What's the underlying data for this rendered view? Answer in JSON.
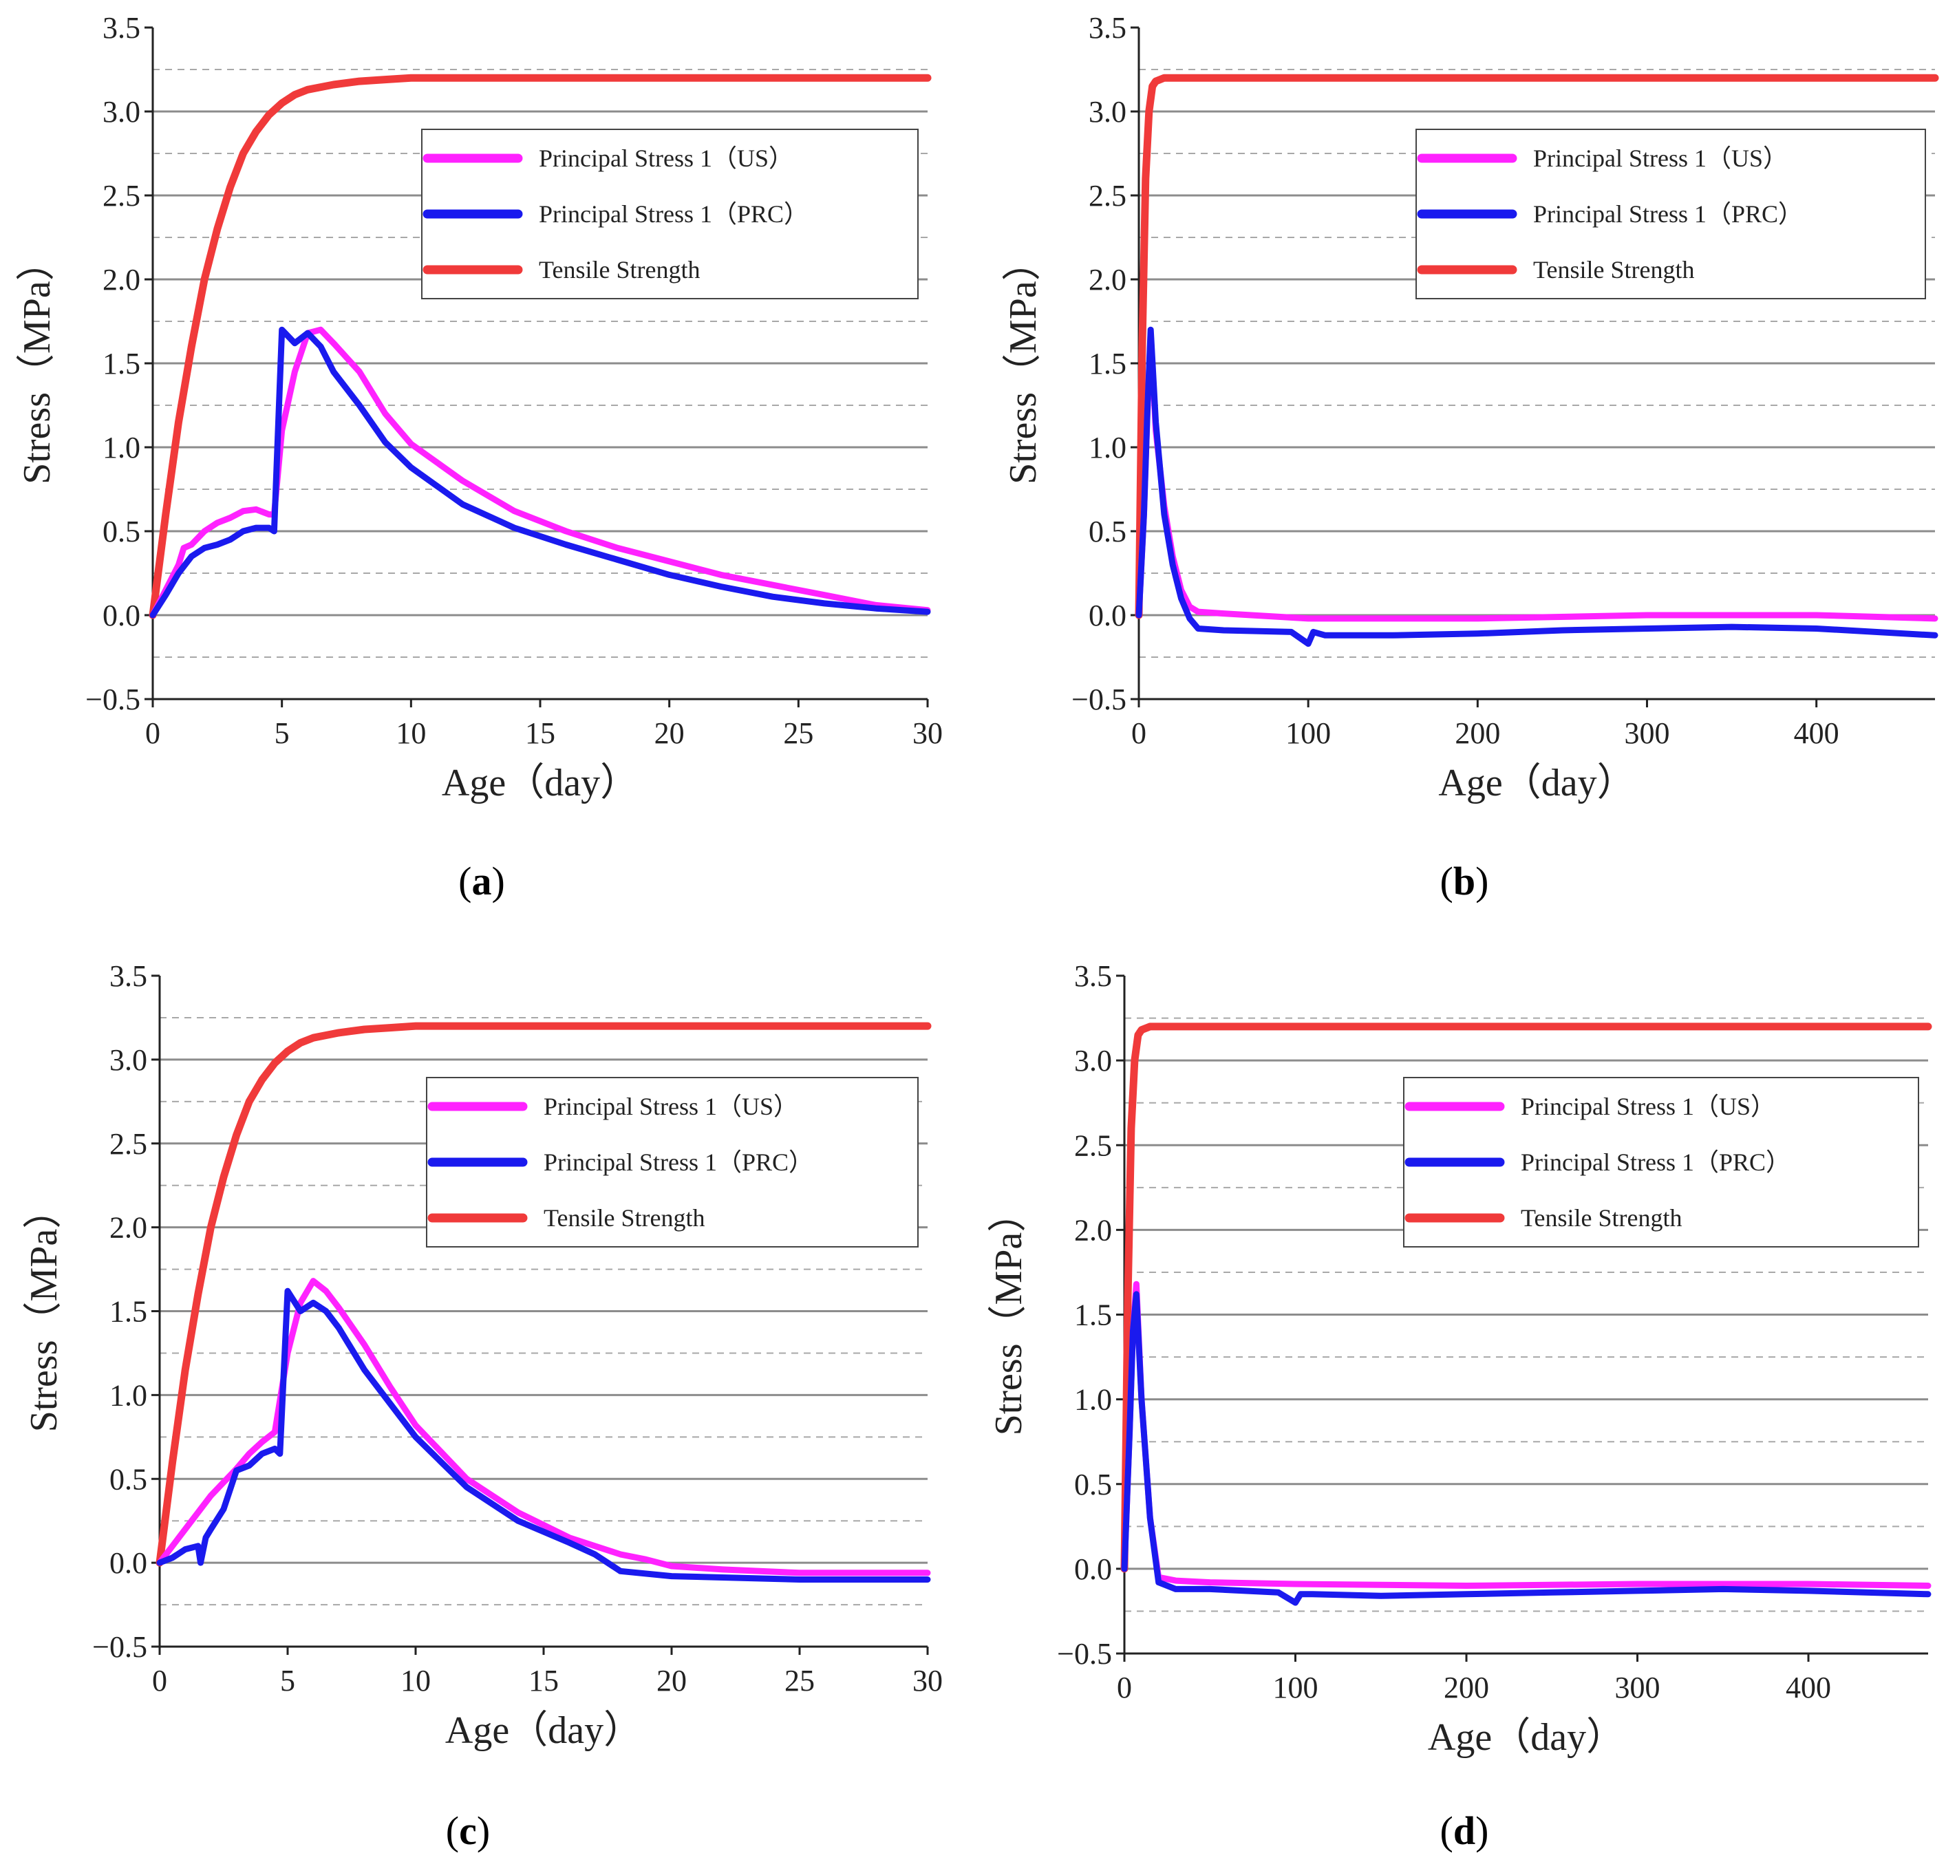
{
  "chart_data": [
    {
      "panel": "a",
      "label": "(a)",
      "type": "line",
      "xlabel": "Age（day）",
      "ylabel": "Stress（MPa）",
      "xlim": [
        0,
        30
      ],
      "ylim": [
        -0.5,
        3.5
      ],
      "xticks": [
        0,
        5,
        10,
        15,
        20,
        25,
        30
      ],
      "yticks": [
        -0.5,
        0.0,
        0.5,
        1.0,
        1.5,
        2.0,
        2.5,
        3.0,
        3.5
      ],
      "ytick_labels": [
        "−0.5",
        "0.0",
        "0.5",
        "1.0",
        "1.5",
        "2.0",
        "2.5",
        "3.0",
        "3.5"
      ],
      "legend": {
        "position": "top-right"
      },
      "series": [
        {
          "name": "Principal Stress 1（US）",
          "color": "#ff22ff",
          "x": [
            0,
            0.5,
            1,
            1.2,
            1.5,
            2,
            2.5,
            3,
            3.5,
            4,
            4.5,
            4.7,
            5,
            5.5,
            6,
            6.5,
            7,
            8,
            9,
            10,
            12,
            14,
            16,
            18,
            20,
            22,
            24,
            26,
            28,
            30
          ],
          "y": [
            0,
            0.15,
            0.3,
            0.4,
            0.42,
            0.5,
            0.55,
            0.58,
            0.62,
            0.63,
            0.6,
            0.6,
            1.1,
            1.45,
            1.68,
            1.7,
            1.62,
            1.45,
            1.2,
            1.02,
            0.8,
            0.62,
            0.5,
            0.4,
            0.32,
            0.24,
            0.18,
            0.12,
            0.06,
            0.03
          ]
        },
        {
          "name": "Principal Stress 1（PRC）",
          "color": "#1a1aee",
          "x": [
            0,
            0.5,
            1,
            1.5,
            2,
            2.5,
            3,
            3.5,
            4,
            4.5,
            4.7,
            5,
            5.5,
            6,
            6.5,
            7,
            8,
            9,
            10,
            12,
            14,
            16,
            18,
            20,
            22,
            24,
            26,
            28,
            30
          ],
          "y": [
            0,
            0.12,
            0.25,
            0.35,
            0.4,
            0.42,
            0.45,
            0.5,
            0.52,
            0.52,
            0.5,
            1.7,
            1.62,
            1.68,
            1.6,
            1.45,
            1.25,
            1.03,
            0.88,
            0.66,
            0.52,
            0.42,
            0.33,
            0.24,
            0.17,
            0.11,
            0.07,
            0.04,
            0.02
          ]
        },
        {
          "name": "Tensile Strength",
          "color": "#f03a3a",
          "x": [
            0,
            0.5,
            1,
            1.5,
            2,
            2.5,
            3,
            3.5,
            4,
            4.5,
            5,
            5.5,
            6,
            7,
            8,
            9,
            10,
            12,
            15,
            20,
            25,
            30
          ],
          "y": [
            0,
            0.6,
            1.15,
            1.6,
            2.0,
            2.3,
            2.55,
            2.75,
            2.88,
            2.98,
            3.05,
            3.1,
            3.13,
            3.16,
            3.18,
            3.19,
            3.2,
            3.2,
            3.2,
            3.2,
            3.2,
            3.2
          ]
        }
      ]
    },
    {
      "panel": "b",
      "label": "(b)",
      "type": "line",
      "xlabel": "Age（day）",
      "ylabel": "Stress（MPa）",
      "xlim": [
        0,
        470
      ],
      "ylim": [
        -0.5,
        3.5
      ],
      "xticks": [
        0,
        100,
        200,
        300,
        400
      ],
      "yticks": [
        -0.5,
        0.0,
        0.5,
        1.0,
        1.5,
        2.0,
        2.5,
        3.0,
        3.5
      ],
      "ytick_labels": [
        "−0.5",
        "0.0",
        "0.5",
        "1.0",
        "1.5",
        "2.0",
        "2.5",
        "3.0",
        "3.5"
      ],
      "legend": {
        "position": "top-right"
      },
      "series": [
        {
          "name": "Principal Stress 1（US）",
          "color": "#ff22ff",
          "x": [
            0,
            3,
            5,
            7,
            10,
            15,
            20,
            25,
            30,
            35,
            50,
            100,
            150,
            200,
            300,
            400,
            470
          ],
          "y": [
            0,
            0.6,
            1.2,
            1.68,
            1.1,
            0.65,
            0.35,
            0.15,
            0.05,
            0.02,
            0.01,
            -0.02,
            -0.02,
            -0.02,
            0.0,
            0.0,
            -0.02
          ]
        },
        {
          "name": "Principal Stress 1（PRC）",
          "color": "#1a1aee",
          "x": [
            0,
            3,
            5,
            7,
            10,
            15,
            20,
            25,
            30,
            35,
            50,
            90,
            100,
            103,
            110,
            150,
            200,
            250,
            300,
            350,
            400,
            470
          ],
          "y": [
            0,
            0.6,
            1.2,
            1.7,
            1.15,
            0.6,
            0.3,
            0.1,
            -0.02,
            -0.08,
            -0.09,
            -0.1,
            -0.17,
            -0.1,
            -0.12,
            -0.12,
            -0.11,
            -0.09,
            -0.08,
            -0.07,
            -0.08,
            -0.12
          ]
        },
        {
          "name": "Tensile Strength",
          "color": "#f03a3a",
          "x": [
            0,
            2,
            4,
            6,
            8,
            10,
            15,
            20,
            50,
            100,
            200,
            300,
            400,
            470
          ],
          "y": [
            0,
            1.6,
            2.6,
            3.0,
            3.15,
            3.18,
            3.2,
            3.2,
            3.2,
            3.2,
            3.2,
            3.2,
            3.2,
            3.2
          ]
        }
      ]
    },
    {
      "panel": "c",
      "label": "(c)",
      "type": "line",
      "xlabel": "Age（day）",
      "ylabel": "Stress（MPa）",
      "xlim": [
        0,
        30
      ],
      "ylim": [
        -0.5,
        3.5
      ],
      "xticks": [
        0,
        5,
        10,
        15,
        20,
        25,
        30
      ],
      "yticks": [
        -0.5,
        0.0,
        0.5,
        1.0,
        1.5,
        2.0,
        2.5,
        3.0,
        3.5
      ],
      "ytick_labels": [
        "−0.5",
        "0.0",
        "0.5",
        "1.0",
        "1.5",
        "2.0",
        "2.5",
        "3.0",
        "3.5"
      ],
      "legend": {
        "position": "top-right"
      },
      "series": [
        {
          "name": "Principal Stress 1（US）",
          "color": "#ff22ff",
          "x": [
            0,
            0.5,
            1,
            1.5,
            2,
            2.5,
            3,
            3.5,
            4,
            4.5,
            5,
            5.5,
            6,
            6.5,
            7,
            8,
            9,
            10,
            12,
            14,
            16,
            18,
            19,
            20,
            22,
            25,
            30
          ],
          "y": [
            0,
            0.1,
            0.2,
            0.3,
            0.4,
            0.48,
            0.56,
            0.65,
            0.72,
            0.78,
            1.25,
            1.55,
            1.68,
            1.62,
            1.52,
            1.3,
            1.05,
            0.82,
            0.5,
            0.3,
            0.15,
            0.05,
            0.02,
            -0.02,
            -0.04,
            -0.06,
            -0.06
          ]
        },
        {
          "name": "Principal Stress 1（PRC）",
          "color": "#1a1aee",
          "x": [
            0,
            0.5,
            1,
            1.5,
            1.6,
            1.8,
            2,
            2.5,
            3,
            3.5,
            4,
            4.5,
            4.7,
            5,
            5.5,
            6,
            6.5,
            7,
            8,
            9,
            10,
            12,
            14,
            16,
            17,
            18,
            20,
            25,
            30
          ],
          "y": [
            0,
            0.03,
            0.08,
            0.1,
            0.0,
            0.15,
            0.2,
            0.32,
            0.55,
            0.58,
            0.65,
            0.68,
            0.65,
            1.62,
            1.5,
            1.55,
            1.5,
            1.4,
            1.15,
            0.95,
            0.75,
            0.45,
            0.25,
            0.12,
            0.05,
            -0.05,
            -0.08,
            -0.1,
            -0.1
          ]
        },
        {
          "name": "Tensile Strength",
          "color": "#f03a3a",
          "x": [
            0,
            0.5,
            1,
            1.5,
            2,
            2.5,
            3,
            3.5,
            4,
            4.5,
            5,
            5.5,
            6,
            7,
            8,
            9,
            10,
            12,
            15,
            20,
            25,
            30
          ],
          "y": [
            0,
            0.6,
            1.15,
            1.6,
            2.0,
            2.3,
            2.55,
            2.75,
            2.88,
            2.98,
            3.05,
            3.1,
            3.13,
            3.16,
            3.18,
            3.19,
            3.2,
            3.2,
            3.2,
            3.2,
            3.2,
            3.2
          ]
        }
      ]
    },
    {
      "panel": "d",
      "label": "(d)",
      "type": "line",
      "xlabel": "Age（day）",
      "ylabel": "Stress（MPa）",
      "xlim": [
        0,
        470
      ],
      "ylim": [
        -0.5,
        3.5
      ],
      "xticks": [
        0,
        100,
        200,
        300,
        400
      ],
      "yticks": [
        -0.5,
        0.0,
        0.5,
        1.0,
        1.5,
        2.0,
        2.5,
        3.0,
        3.5
      ],
      "ytick_labels": [
        "−0.5",
        "0.0",
        "0.5",
        "1.0",
        "1.5",
        "2.0",
        "2.5",
        "3.0",
        "3.5"
      ],
      "legend": {
        "position": "top-right"
      },
      "series": [
        {
          "name": "Principal Stress 1（US）",
          "color": "#ff22ff",
          "x": [
            0,
            3,
            5,
            7,
            10,
            15,
            20,
            30,
            50,
            100,
            200,
            300,
            400,
            470
          ],
          "y": [
            0,
            0.8,
            1.4,
            1.68,
            1.0,
            0.3,
            -0.05,
            -0.07,
            -0.08,
            -0.09,
            -0.1,
            -0.09,
            -0.09,
            -0.1
          ]
        },
        {
          "name": "Principal Stress 1（PRC）",
          "color": "#1a1aee",
          "x": [
            0,
            3,
            5,
            7,
            10,
            15,
            20,
            30,
            50,
            90,
            100,
            103,
            110,
            150,
            200,
            250,
            300,
            350,
            400,
            470
          ],
          "y": [
            0,
            0.8,
            1.4,
            1.62,
            1.0,
            0.3,
            -0.08,
            -0.12,
            -0.12,
            -0.14,
            -0.2,
            -0.15,
            -0.15,
            -0.16,
            -0.15,
            -0.14,
            -0.13,
            -0.12,
            -0.13,
            -0.15
          ]
        },
        {
          "name": "Tensile Strength",
          "color": "#f03a3a",
          "x": [
            0,
            2,
            4,
            6,
            8,
            10,
            15,
            20,
            50,
            100,
            200,
            300,
            400,
            470
          ],
          "y": [
            0,
            1.6,
            2.6,
            3.0,
            3.15,
            3.18,
            3.2,
            3.2,
            3.2,
            3.2,
            3.2,
            3.2,
            3.2,
            3.2
          ]
        }
      ]
    }
  ]
}
